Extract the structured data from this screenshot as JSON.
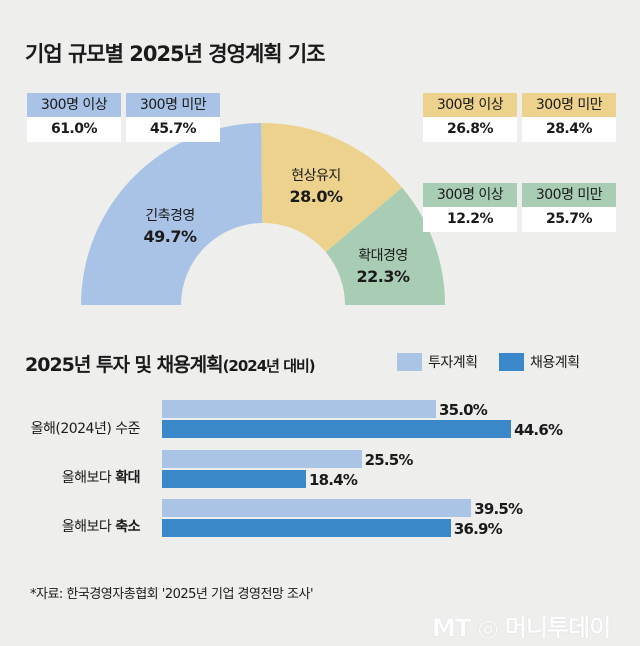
{
  "chart_data": [
    {
      "type": "pie",
      "variant": "half-donut",
      "title": "기업 규모별 2025년 경영계획 기조",
      "slices": [
        {
          "label": "긴축경영",
          "value": 49.7,
          "value_label": "49.7%",
          "color": "#a9c3e6",
          "breakdown": [
            {
              "label": "300명 이상",
              "value": "61.0%"
            },
            {
              "label": "300명 미만",
              "value": "45.7%"
            }
          ]
        },
        {
          "label": "현상유지",
          "value": 28.0,
          "value_label": "28.0%",
          "color": "#ecd28c",
          "breakdown": [
            {
              "label": "300명 이상",
              "value": "26.8%"
            },
            {
              "label": "300명 미만",
              "value": "28.4%"
            }
          ]
        },
        {
          "label": "확대경영",
          "value": 22.3,
          "value_label": "22.3%",
          "color": "#a8cdb4",
          "breakdown": [
            {
              "label": "300명 이상",
              "value": "12.2%"
            },
            {
              "label": "300명 미만",
              "value": "25.7%"
            }
          ]
        }
      ]
    },
    {
      "type": "bar",
      "orientation": "horizontal",
      "title": "2025년 투자 및 채용계획",
      "title_suffix": "(2024년 대비)",
      "legend_placement": "top-right",
      "categories": [
        {
          "plain": "올해(2024년) 수준",
          "bold": ""
        },
        {
          "plain": "올해보다 ",
          "bold": "확대"
        },
        {
          "plain": "올해보다 ",
          "bold": "축소"
        }
      ],
      "series": [
        {
          "name": "투자계획",
          "color": "#aac4e6",
          "values": [
            35.0,
            25.5,
            39.5
          ],
          "labels": [
            "35.0%",
            "25.5%",
            "39.5%"
          ]
        },
        {
          "name": "채용계획",
          "color": "#3a88c9",
          "values": [
            44.6,
            18.4,
            36.9
          ],
          "labels": [
            "44.6%",
            "18.4%",
            "36.9%"
          ]
        }
      ],
      "xlim": [
        0,
        50
      ],
      "grid": false
    }
  ],
  "source": "*자료: 한국경영자총협회 '2025년 기업 경영전망 조사'",
  "watermark": "MT 머니투데이"
}
